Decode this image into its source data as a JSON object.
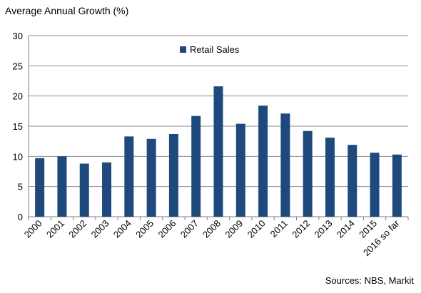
{
  "chart_data": {
    "type": "bar",
    "title": "Average Annual Growth (%)",
    "source": "Sources: NBS, Markit",
    "categories": [
      "2000",
      "2001",
      "2002",
      "2003",
      "2004",
      "2005",
      "2006",
      "2007",
      "2008",
      "2009",
      "2010",
      "2011",
      "2012",
      "2013",
      "2014",
      "2015",
      "2016 so far"
    ],
    "series": [
      {
        "name": "Retail Sales",
        "color": "#1f497d",
        "values": [
          9.7,
          10.0,
          8.8,
          9.0,
          13.3,
          12.9,
          13.7,
          16.7,
          21.6,
          15.4,
          18.4,
          17.1,
          14.2,
          13.1,
          11.9,
          10.6,
          10.3
        ]
      }
    ],
    "ylim": [
      0,
      30
    ],
    "yticks": [
      0,
      5,
      10,
      15,
      20,
      25,
      30
    ],
    "grid": true,
    "legend_position": "top-left-inside"
  }
}
